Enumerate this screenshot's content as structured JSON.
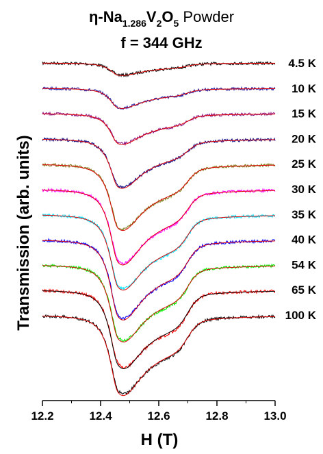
{
  "chart_data": {
    "type": "line",
    "title": {
      "prefix": "η-Na",
      "sub1": "1.286",
      "mid": "V",
      "sub2": "2",
      "mid2": "O",
      "sub3": "5",
      "suffix": " Powder"
    },
    "subtitle": "f = 344 GHz",
    "xlabel": "H (T)",
    "ylabel": "Transmission (arb. units)",
    "xlim": [
      12.2,
      13.0
    ],
    "x_ticks": [
      "12.2",
      "12.4",
      "12.6",
      "12.8",
      "13.0"
    ],
    "y_ticks_shown": false,
    "legend_placement": "inline-right",
    "line_model": {
      "main_dip_center_T": 12.46,
      "shoulder_center_T": 12.7,
      "unit_note": ""
    },
    "series": [
      {
        "name": "4.5 K",
        "color": "#000000",
        "baseline": 0.0,
        "dip_depth": 0.6,
        "shoulder_depth": 0.2
      },
      {
        "name": "10 K",
        "color": "#1a1aa6",
        "baseline": 1.0,
        "dip_depth": 1.0,
        "shoulder_depth": 0.3
      },
      {
        "name": "15 K",
        "color": "#8b1a8b",
        "baseline": 2.0,
        "dip_depth": 1.5,
        "shoulder_depth": 0.5
      },
      {
        "name": "20 K",
        "color": "#12128c",
        "baseline": 3.0,
        "dip_depth": 2.4,
        "shoulder_depth": 0.8
      },
      {
        "name": "25 K",
        "color": "#808020",
        "baseline": 4.0,
        "dip_depth": 3.1,
        "shoulder_depth": 1.2
      },
      {
        "name": "30 K",
        "color": "#ff00ff",
        "baseline": 5.0,
        "dip_depth": 3.5,
        "shoulder_depth": 1.4
      },
      {
        "name": "35 K",
        "color": "#00e5ff",
        "baseline": 6.0,
        "dip_depth": 3.4,
        "shoulder_depth": 1.5
      },
      {
        "name": "40 K",
        "color": "#0000ff",
        "baseline": 7.0,
        "dip_depth": 3.6,
        "shoulder_depth": 1.6
      },
      {
        "name": "54 K",
        "color": "#00ee00",
        "baseline": 8.0,
        "dip_depth": 3.4,
        "shoulder_depth": 1.6
      },
      {
        "name": "65 K",
        "color": "#ff0000",
        "baseline": 9.0,
        "dip_depth": 3.4,
        "shoulder_depth": 1.7
      },
      {
        "name": "100 K",
        "color": "#000000",
        "baseline": 10.0,
        "dip_depth": 3.6,
        "shoulder_depth": 1.6
      }
    ],
    "fit_color": "#e00000",
    "fit_color_alt": "#000000"
  }
}
